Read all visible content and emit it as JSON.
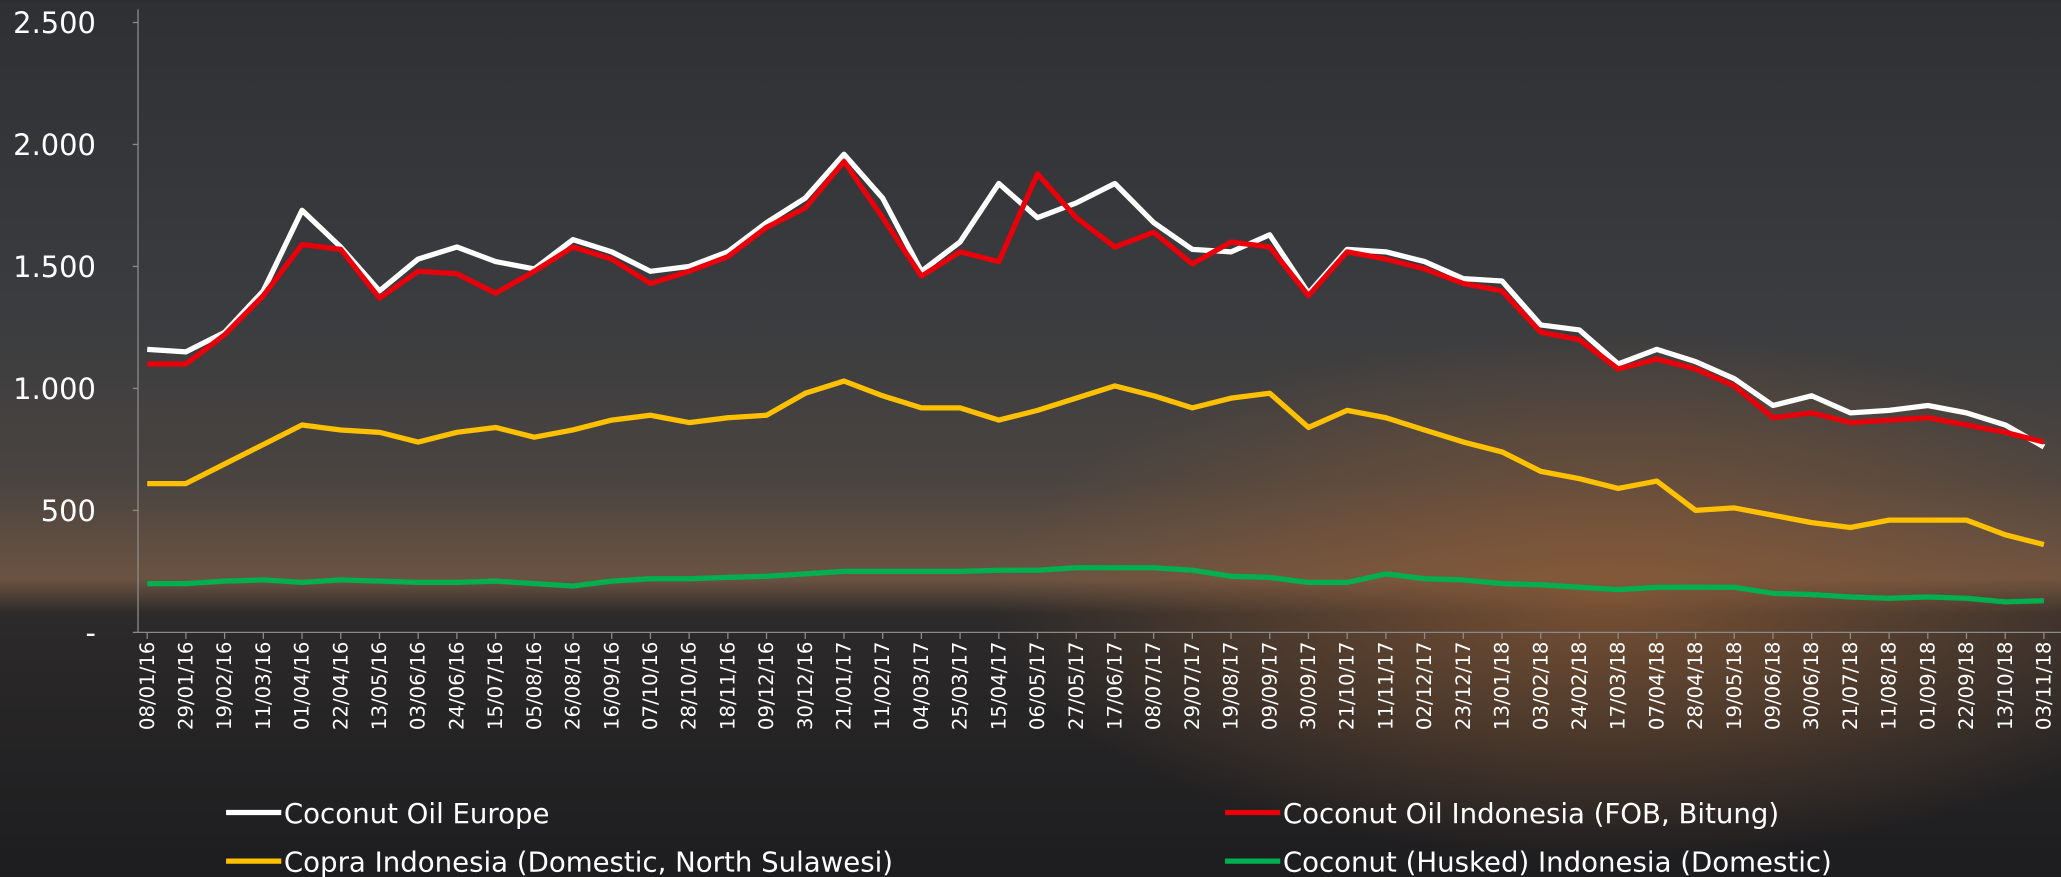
{
  "chart_data": {
    "type": "line",
    "categories": [
      "08/01/16",
      "29/01/16",
      "19/02/16",
      "11/03/16",
      "01/04/16",
      "22/04/16",
      "13/05/16",
      "03/06/16",
      "24/06/16",
      "15/07/16",
      "05/08/16",
      "26/08/16",
      "16/09/16",
      "07/10/16",
      "28/10/16",
      "18/11/16",
      "09/12/16",
      "30/12/16",
      "21/01/17",
      "11/02/17",
      "04/03/17",
      "25/03/17",
      "15/04/17",
      "06/05/17",
      "27/05/17",
      "17/06/17",
      "08/07/17",
      "29/07/17",
      "19/08/17",
      "09/09/17",
      "30/09/17",
      "21/10/17",
      "11/11/17",
      "02/12/17",
      "23/12/17",
      "13/01/18",
      "03/02/18",
      "24/02/18",
      "17/03/18",
      "07/04/18",
      "28/04/18",
      "19/05/18",
      "09/06/18",
      "30/06/18",
      "21/07/18",
      "11/08/18",
      "01/09/18",
      "22/09/18",
      "13/10/18",
      "03/11/18"
    ],
    "series": [
      {
        "name": "Coconut Oil Europe",
        "color": "#ffffff",
        "values": [
          1160,
          1150,
          1230,
          1400,
          1730,
          1580,
          1400,
          1530,
          1580,
          1520,
          1490,
          1610,
          1560,
          1480,
          1500,
          1560,
          1680,
          1780,
          1960,
          1780,
          1480,
          1600,
          1840,
          1700,
          1760,
          1840,
          1680,
          1570,
          1560,
          1630,
          1390,
          1570,
          1560,
          1520,
          1450,
          1440,
          1260,
          1240,
          1100,
          1160,
          1110,
          1040,
          930,
          970,
          900,
          910,
          930,
          900,
          850,
          760
        ]
      },
      {
        "name": "Coconut Oil Indonesia (FOB, Bitung)",
        "color": "#e8000b",
        "values": [
          1100,
          1100,
          1220,
          1380,
          1590,
          1570,
          1370,
          1480,
          1470,
          1390,
          1480,
          1580,
          1530,
          1430,
          1480,
          1540,
          1660,
          1740,
          1930,
          1700,
          1460,
          1560,
          1520,
          1880,
          1700,
          1580,
          1640,
          1510,
          1600,
          1580,
          1380,
          1560,
          1530,
          1490,
          1430,
          1400,
          1230,
          1200,
          1080,
          1120,
          1080,
          1010,
          880,
          900,
          860,
          870,
          880,
          850,
          820,
          780
        ]
      },
      {
        "name": "Copra Indonesia (Domestic, North Sulawesi)",
        "color": "#ffc000",
        "values": [
          610,
          610,
          690,
          770,
          850,
          830,
          820,
          780,
          820,
          840,
          800,
          830,
          870,
          890,
          860,
          880,
          890,
          980,
          1030,
          970,
          920,
          920,
          870,
          910,
          960,
          1010,
          970,
          920,
          960,
          980,
          840,
          910,
          880,
          830,
          780,
          740,
          660,
          630,
          590,
          620,
          500,
          510,
          480,
          450,
          430,
          460,
          460,
          460,
          400,
          360
        ]
      },
      {
        "name": "Coconut (Husked) Indonesia (Domestic)",
        "color": "#00b050",
        "values": [
          200,
          200,
          210,
          215,
          205,
          215,
          210,
          205,
          205,
          210,
          200,
          190,
          210,
          220,
          220,
          225,
          230,
          240,
          250,
          250,
          250,
          250,
          255,
          255,
          265,
          265,
          265,
          255,
          230,
          225,
          205,
          205,
          240,
          220,
          215,
          200,
          195,
          185,
          175,
          185,
          185,
          185,
          160,
          155,
          145,
          140,
          145,
          140,
          125,
          130
        ]
      }
    ],
    "ylim": [
      0,
      2500
    ],
    "yticks": [
      {
        "value": 0,
        "label": "-"
      },
      500,
      {
        "value": 1000,
        "label": "1.000"
      },
      {
        "value": 1500,
        "label": "1.500"
      },
      {
        "value": 2000,
        "label": "2.000"
      },
      {
        "value": 2500,
        "label": "2.500"
      }
    ],
    "legend": "bottom"
  }
}
